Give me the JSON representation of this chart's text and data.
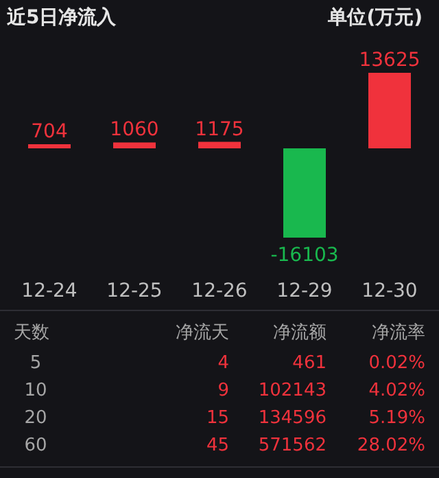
{
  "chart_data": {
    "type": "bar",
    "title": "近5日净流入",
    "subtitle": "单位(万元)",
    "categories": [
      "12-24",
      "12-25",
      "12-26",
      "12-29",
      "12-30"
    ],
    "values": [
      704,
      1060,
      1175,
      -16103,
      13625
    ],
    "colors": [
      "#f0323c",
      "#f0323c",
      "#f0323c",
      "#19b84e",
      "#f0323c"
    ],
    "data_labels": true,
    "annotations": [
      "天数",
      "净流天",
      "净流额",
      "净流率",
      "5",
      "4",
      "461",
      "0.02%",
      "10",
      "9",
      "102143",
      "4.02%",
      "20",
      "15",
      "134596",
      "5.19%",
      "60",
      "45",
      "571562",
      "28.02%"
    ]
  }
}
